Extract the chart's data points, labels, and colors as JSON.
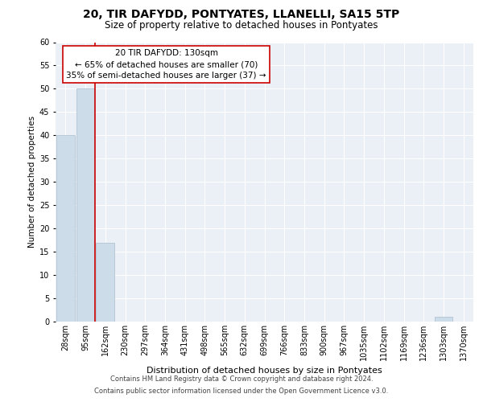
{
  "title": "20, TIR DAFYDD, PONTYATES, LLANELLI, SA15 5TP",
  "subtitle": "Size of property relative to detached houses in Pontyates",
  "xlabel": "Distribution of detached houses by size in Pontyates",
  "ylabel": "Number of detached properties",
  "bar_labels": [
    "28sqm",
    "95sqm",
    "162sqm",
    "230sqm",
    "297sqm",
    "364sqm",
    "431sqm",
    "498sqm",
    "565sqm",
    "632sqm",
    "699sqm",
    "766sqm",
    "833sqm",
    "900sqm",
    "967sqm",
    "1035sqm",
    "1102sqm",
    "1169sqm",
    "1236sqm",
    "1303sqm",
    "1370sqm"
  ],
  "bar_values": [
    40,
    50,
    17,
    0,
    0,
    0,
    0,
    0,
    0,
    0,
    0,
    0,
    0,
    0,
    0,
    0,
    0,
    0,
    0,
    1,
    0
  ],
  "bar_color": "#ccdce8",
  "bar_edge_color": "#aabccc",
  "ylim": [
    0,
    60
  ],
  "yticks": [
    0,
    5,
    10,
    15,
    20,
    25,
    30,
    35,
    40,
    45,
    50,
    55,
    60
  ],
  "property_line_color": "#cc0000",
  "annotation_title": "20 TIR DAFYDD: 130sqm",
  "annotation_line1": "← 65% of detached houses are smaller (70)",
  "annotation_line2": "35% of semi-detached houses are larger (37) →",
  "annotation_box_color": "#ffffff",
  "annotation_box_edge": "#cc0000",
  "footer1": "Contains HM Land Registry data © Crown copyright and database right 2024.",
  "footer2": "Contains public sector information licensed under the Open Government Licence v3.0.",
  "background_color": "#eaf0f6",
  "grid_color": "#ffffff",
  "title_fontsize": 10,
  "subtitle_fontsize": 8.5,
  "ylabel_fontsize": 7.5,
  "xlabel_fontsize": 8,
  "tick_fontsize": 7,
  "ann_fontsize": 7.5,
  "footer_fontsize": 6
}
